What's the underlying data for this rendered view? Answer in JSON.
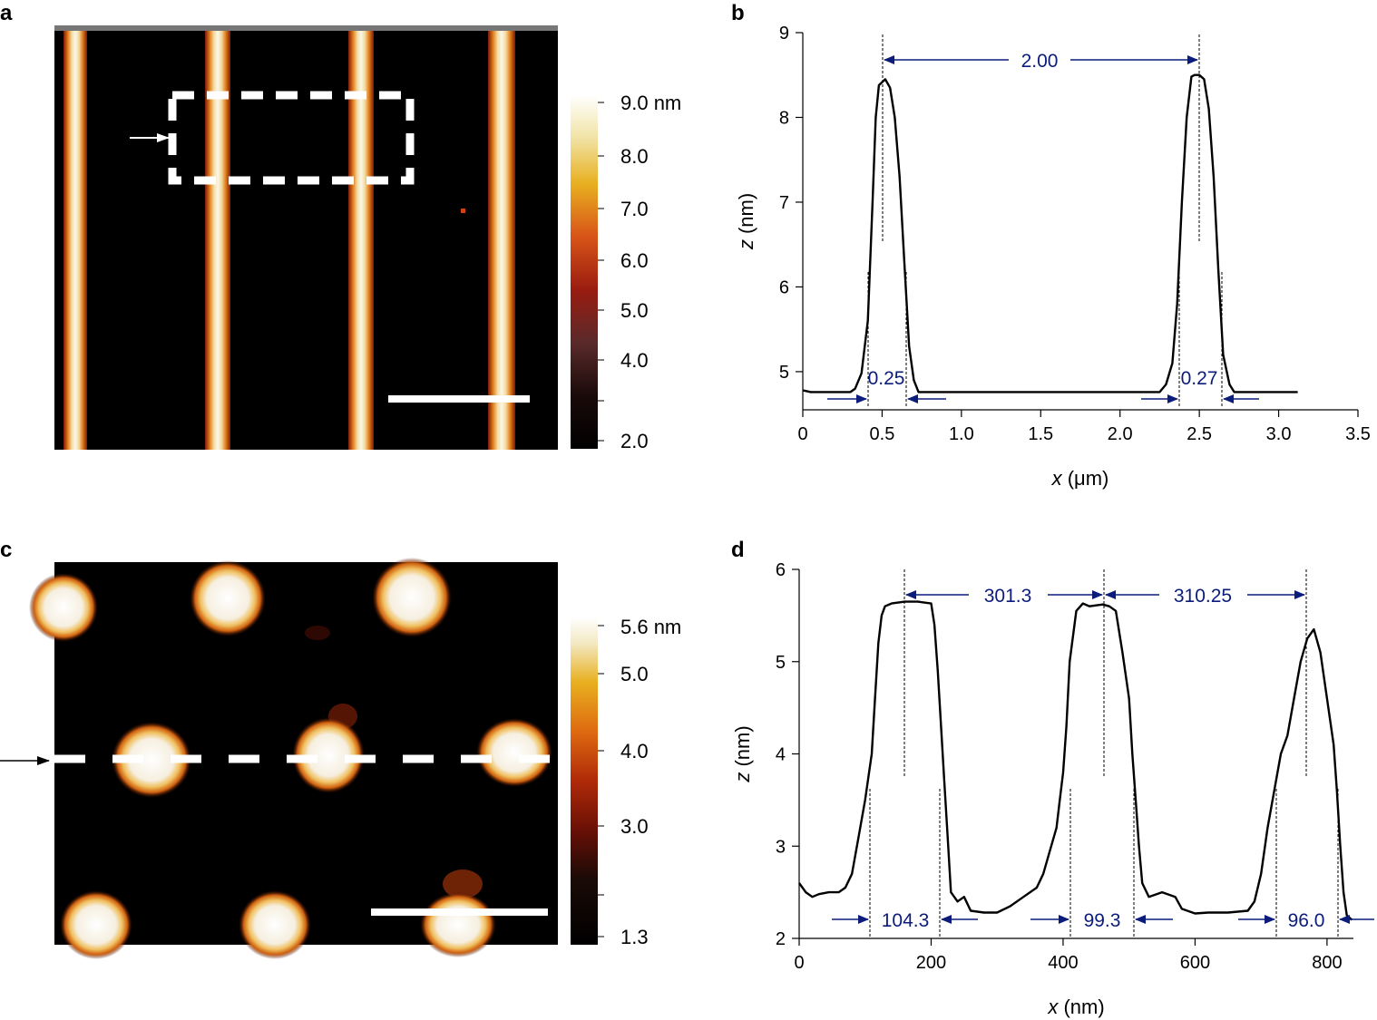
{
  "panels": {
    "a": {
      "letter": "a",
      "colorbar": {
        "ticks": [
          "9.0 nm",
          "8.0",
          "7.0",
          "6.0",
          "5.0",
          "4.0",
          "2.0"
        ]
      }
    },
    "b": {
      "letter": "b",
      "annotations": {
        "spacing": "2.00",
        "width_left": "0.25",
        "width_right": "0.27"
      }
    },
    "c": {
      "letter": "c",
      "colorbar": {
        "ticks": [
          "5.6 nm",
          "5.0",
          "4.0",
          "3.0",
          "1.3"
        ]
      }
    },
    "d": {
      "letter": "d",
      "annotations": {
        "spacing_1": "301.3",
        "spacing_2": "310.25",
        "width_1": "104.3",
        "width_2": "99.3",
        "width_3": "96.0"
      }
    }
  },
  "colors": {
    "annotation": "#0b1c7a",
    "line": "#000000"
  },
  "chart_data": [
    {
      "panel": "b",
      "type": "line",
      "xlabel_var": "x",
      "xlabel_unit": " (μm)",
      "ylabel_var": "z",
      "ylabel_unit": " (nm)",
      "xlim": [
        0,
        3.5
      ],
      "ylim": [
        4.55,
        9
      ],
      "xticks": [
        "0",
        "0.5",
        "1.0",
        "1.5",
        "2.0",
        "2.5",
        "3.0",
        "3.5"
      ],
      "yticks": [
        "5",
        "6",
        "7",
        "8",
        "9"
      ],
      "x": [
        0,
        0.05,
        0.2,
        0.3,
        0.33,
        0.37,
        0.41,
        0.44,
        0.46,
        0.48,
        0.52,
        0.55,
        0.58,
        0.61,
        0.64,
        0.67,
        0.7,
        0.73,
        1.0,
        1.5,
        2.0,
        2.25,
        2.29,
        2.33,
        2.36,
        2.39,
        2.42,
        2.45,
        2.47,
        2.5,
        2.53,
        2.56,
        2.59,
        2.62,
        2.65,
        2.69,
        2.72,
        3.0,
        3.12
      ],
      "y": [
        4.78,
        4.76,
        4.76,
        4.76,
        4.8,
        4.98,
        5.6,
        7.0,
        8.0,
        8.38,
        8.45,
        8.35,
        8.0,
        7.3,
        6.3,
        5.3,
        4.9,
        4.76,
        4.76,
        4.76,
        4.76,
        4.76,
        4.85,
        5.1,
        5.8,
        7.0,
        8.0,
        8.48,
        8.5,
        8.5,
        8.45,
        8.1,
        7.3,
        6.2,
        5.2,
        4.85,
        4.76,
        4.76,
        4.76
      ]
    },
    {
      "panel": "d",
      "type": "line",
      "xlabel_var": "x",
      "xlabel_unit": " (nm)",
      "ylabel_var": "z",
      "ylabel_unit": " (nm)",
      "xlim": [
        0,
        840
      ],
      "ylim": [
        2,
        6
      ],
      "xticks": [
        "0",
        "200",
        "400",
        "600",
        "800"
      ],
      "yticks": [
        "2",
        "3",
        "4",
        "5",
        "6"
      ],
      "x": [
        0,
        10,
        20,
        30,
        45,
        60,
        70,
        80,
        90,
        100,
        110,
        115,
        120,
        125,
        130,
        140,
        160,
        180,
        200,
        205,
        210,
        215,
        220,
        225,
        230,
        240,
        250,
        260,
        280,
        300,
        320,
        340,
        360,
        370,
        380,
        390,
        395,
        400,
        405,
        410,
        420,
        430,
        440,
        460,
        470,
        480,
        490,
        500,
        505,
        510,
        515,
        520,
        530,
        550,
        570,
        580,
        600,
        620,
        650,
        680,
        690,
        700,
        710,
        720,
        730,
        740,
        750,
        760,
        770,
        780,
        790,
        800,
        810,
        815,
        820,
        825,
        830,
        838
      ],
      "y": [
        2.6,
        2.5,
        2.45,
        2.48,
        2.5,
        2.5,
        2.55,
        2.7,
        3.1,
        3.5,
        4.0,
        4.6,
        5.2,
        5.5,
        5.6,
        5.63,
        5.65,
        5.65,
        5.63,
        5.4,
        4.9,
        4.3,
        3.7,
        3.1,
        2.5,
        2.4,
        2.45,
        2.3,
        2.28,
        2.28,
        2.35,
        2.45,
        2.55,
        2.7,
        2.95,
        3.2,
        3.5,
        3.8,
        4.3,
        5.0,
        5.55,
        5.63,
        5.6,
        5.62,
        5.6,
        5.55,
        5.1,
        4.6,
        4.0,
        3.5,
        3.0,
        2.6,
        2.45,
        2.5,
        2.45,
        2.32,
        2.27,
        2.28,
        2.28,
        2.3,
        2.4,
        2.7,
        3.2,
        3.6,
        4.0,
        4.2,
        4.6,
        5.0,
        5.25,
        5.35,
        5.1,
        4.6,
        4.1,
        3.6,
        3.0,
        2.5,
        2.25,
        2.2
      ]
    }
  ]
}
